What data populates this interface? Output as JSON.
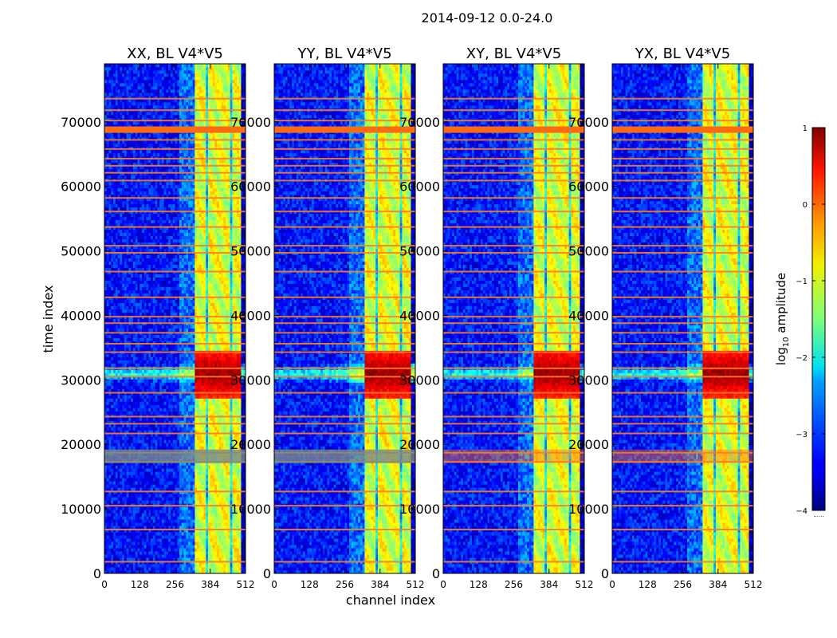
{
  "chart_data": {
    "type": "heatmap",
    "suptitle": "2014-09-12 0.0-24.0",
    "panels": [
      {
        "id": "xx",
        "title": "XX, BL V4*V5"
      },
      {
        "id": "yy",
        "title": "YY, BL V4*V5"
      },
      {
        "id": "xy",
        "title": "XY, BL V4*V5"
      },
      {
        "id": "yx",
        "title": "YX, BL V4*V5"
      }
    ],
    "x_axis": {
      "label": "channel index",
      "range": [
        0,
        512
      ],
      "ticks": [
        0,
        128,
        256,
        384,
        512
      ]
    },
    "y_axis": {
      "label": "time index",
      "range": [
        0,
        79000
      ],
      "ticks": [
        0,
        10000,
        20000,
        30000,
        40000,
        50000,
        60000,
        70000
      ]
    },
    "colorbar": {
      "label": "log",
      "label_sub": "10",
      "label_tail": " amplitude",
      "range": [
        -4,
        1
      ],
      "ticks": [
        1,
        0,
        -1,
        -2,
        -3,
        -4
      ],
      "tick_labels": [
        "1",
        "0",
        "−1",
        "−2",
        "−3",
        "−4"
      ],
      "colormap": "jet",
      "footnote": "......"
    },
    "features": {
      "rfi_band_channels": [
        330,
        500
      ],
      "strong_burst_time": [
        27000,
        34500
      ],
      "burst_peak_time": 31000,
      "flagged_rows_time": [
        1800,
        6800,
        10500,
        12700,
        17300,
        18700,
        21700,
        23200,
        24300,
        28000,
        30500,
        31800,
        34300,
        35600,
        37300,
        38800,
        39800,
        42800,
        46800,
        49700,
        50800,
        53700,
        56100,
        58200,
        60900,
        62100,
        63200,
        64300,
        65800,
        67200,
        69100,
        70200,
        71800,
        73600
      ]
    }
  }
}
